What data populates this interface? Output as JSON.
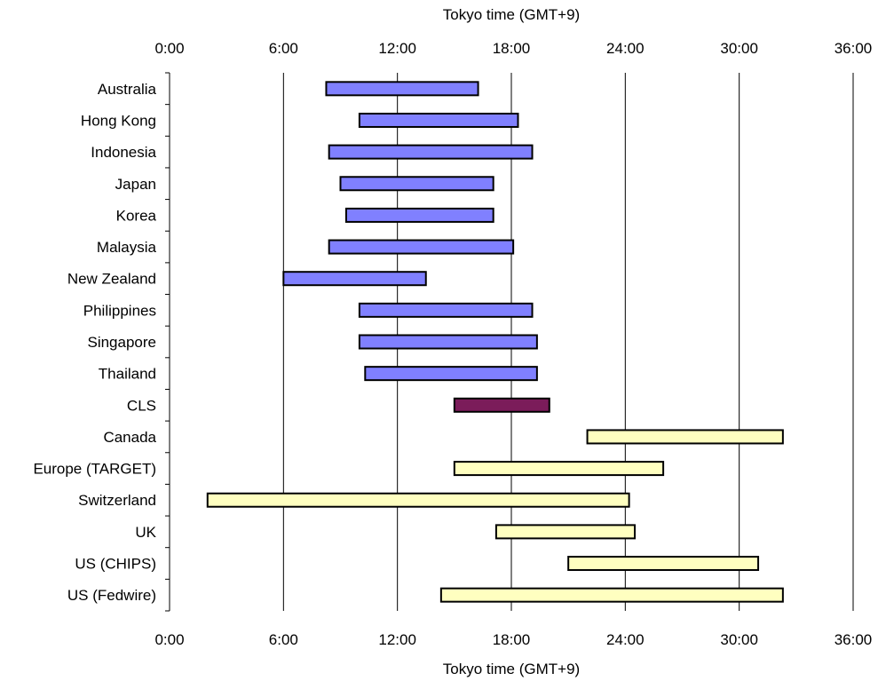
{
  "chart_data": {
    "type": "bar",
    "orientation": "horizontal",
    "style": "floating-range (Gantt)",
    "xlabel_top": "Tokyo time (GMT+9)",
    "xlabel_bottom": "Tokyo time (GMT+9)",
    "x_unit": "hours",
    "xlim": [
      0,
      36
    ],
    "x_ticks": [
      0,
      6,
      12,
      18,
      24,
      30,
      36
    ],
    "x_tick_labels": [
      "0:00",
      "6:00",
      "12:00",
      "18:00",
      "24:00",
      "30:00",
      "36:00"
    ],
    "grid": "vertical lines at each x tick",
    "legend": "none",
    "colors": {
      "asia": "#8080ff",
      "cls": "#7b1c5a",
      "west": "#ffffc0",
      "edge": "#000000"
    },
    "categories": [
      "Australia",
      "Hong Kong",
      "Indonesia",
      "Japan",
      "Korea",
      "Malaysia",
      "New Zealand",
      "Philippines",
      "Singapore",
      "Thailand",
      "CLS",
      "Canada",
      "Europe (TARGET)",
      "Switzerland",
      "UK",
      "US (CHIPS)",
      "US (Fedwire)"
    ],
    "ranges": [
      {
        "category": "Australia",
        "start": 8.25,
        "end": 16.25,
        "group": "asia"
      },
      {
        "category": "Hong Kong",
        "start": 10.0,
        "end": 18.35,
        "group": "asia"
      },
      {
        "category": "Indonesia",
        "start": 8.4,
        "end": 19.1,
        "group": "asia"
      },
      {
        "category": "Japan",
        "start": 9.0,
        "end": 17.05,
        "group": "asia"
      },
      {
        "category": "Korea",
        "start": 9.3,
        "end": 17.05,
        "group": "asia"
      },
      {
        "category": "Malaysia",
        "start": 8.4,
        "end": 18.1,
        "group": "asia"
      },
      {
        "category": "New Zealand",
        "start": 6.0,
        "end": 13.5,
        "group": "asia"
      },
      {
        "category": "Philippines",
        "start": 10.0,
        "end": 19.1,
        "group": "asia"
      },
      {
        "category": "Singapore",
        "start": 10.0,
        "end": 19.35,
        "group": "asia"
      },
      {
        "category": "Thailand",
        "start": 10.3,
        "end": 19.35,
        "group": "asia"
      },
      {
        "category": "CLS",
        "start": 15.0,
        "end": 20.0,
        "group": "cls"
      },
      {
        "category": "Canada",
        "start": 22.0,
        "end": 32.3,
        "group": "west"
      },
      {
        "category": "Europe (TARGET)",
        "start": 15.0,
        "end": 26.0,
        "group": "west"
      },
      {
        "category": "Switzerland",
        "start": 2.0,
        "end": 24.2,
        "group": "west"
      },
      {
        "category": "UK",
        "start": 17.2,
        "end": 24.5,
        "group": "west"
      },
      {
        "category": "US (CHIPS)",
        "start": 21.0,
        "end": 31.0,
        "group": "west"
      },
      {
        "category": "US (Fedwire)",
        "start": 14.3,
        "end": 32.3,
        "group": "west"
      }
    ]
  }
}
